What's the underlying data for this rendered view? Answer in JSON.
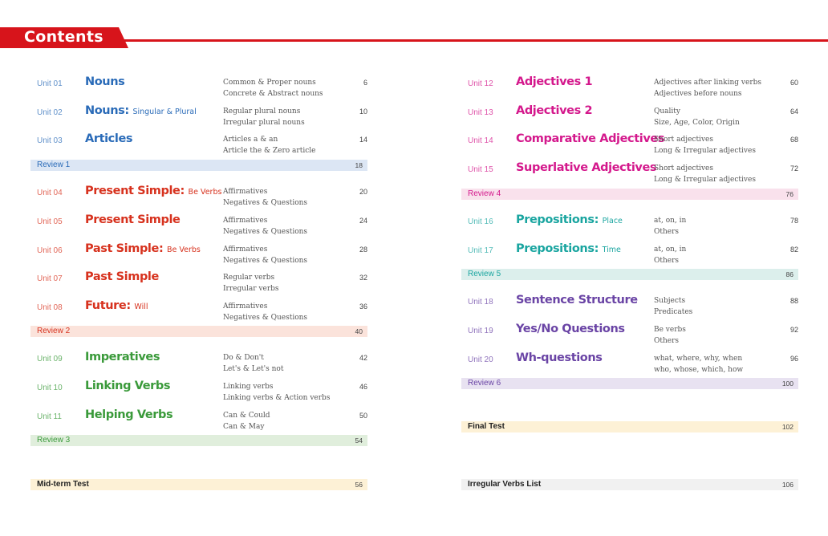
{
  "header": {
    "title": "Contents"
  },
  "colors": {
    "blue": "#2a6bb8",
    "red": "#d7321e",
    "green": "#3a9a3a",
    "magenta": "#d4188c",
    "teal": "#1aa5a0",
    "purple": "#6a44a5",
    "brand_red": "#d7141b"
  },
  "left": {
    "sections": [
      {
        "units": [
          {
            "unit": "Unit 01",
            "title": "Nouns",
            "subtitle": "",
            "desc": [
              "Common & Proper nouns",
              "Concrete & Abstract nouns"
            ],
            "page": "6"
          },
          {
            "unit": "Unit 02",
            "title": "Nouns:",
            "subtitle": "Singular & Plural",
            "desc": [
              "Regular plural nouns",
              "Irregular plural nouns"
            ],
            "page": "10"
          },
          {
            "unit": "Unit 03",
            "title": "Articles",
            "subtitle": "",
            "desc": [
              "Articles a & an",
              "Article the & Zero article"
            ],
            "page": "14"
          }
        ],
        "review": {
          "label": "Review 1",
          "page": "18"
        }
      },
      {
        "units": [
          {
            "unit": "Unit 04",
            "title": "Present Simple:",
            "subtitle": "Be Verbs",
            "desc": [
              "Affirmatives",
              "Negatives & Questions"
            ],
            "page": "20"
          },
          {
            "unit": "Unit 05",
            "title": "Present Simple",
            "subtitle": "",
            "desc": [
              "Affirmatives",
              "Negatives & Questions"
            ],
            "page": "24"
          },
          {
            "unit": "Unit 06",
            "title": "Past Simple:",
            "subtitle": "Be Verbs",
            "desc": [
              "Affirmatives",
              "Negatives & Questions"
            ],
            "page": "28"
          },
          {
            "unit": "Unit 07",
            "title": "Past Simple",
            "subtitle": "",
            "desc": [
              "Regular verbs",
              "Irregular verbs"
            ],
            "page": "32"
          },
          {
            "unit": "Unit 08",
            "title": "Future:",
            "subtitle": "Will",
            "desc": [
              "Affirmatives",
              "Negatives & Questions"
            ],
            "page": "36"
          }
        ],
        "review": {
          "label": "Review 2",
          "page": "40"
        }
      },
      {
        "units": [
          {
            "unit": "Unit 09",
            "title": "Imperatives",
            "subtitle": "",
            "desc": [
              "Do & Don't",
              "Let's & Let's not"
            ],
            "page": "42"
          },
          {
            "unit": "Unit 10",
            "title": "Linking Verbs",
            "subtitle": "",
            "desc": [
              "Linking verbs",
              "Linking verbs & Action verbs"
            ],
            "page": "46"
          },
          {
            "unit": "Unit 11",
            "title": "Helping Verbs",
            "subtitle": "",
            "desc": [
              "Can & Could",
              "Can & May"
            ],
            "page": "50"
          }
        ],
        "review": {
          "label": "Review 3",
          "page": "54"
        }
      }
    ],
    "test": {
      "label": "Mid-term Test",
      "page": "56"
    }
  },
  "right": {
    "sections": [
      {
        "units": [
          {
            "unit": "Unit 12",
            "title": "Adjectives 1",
            "subtitle": "",
            "desc": [
              "Adjectives after linking verbs",
              "Adjectives before nouns"
            ],
            "page": "60"
          },
          {
            "unit": "Unit 13",
            "title": "Adjectives 2",
            "subtitle": "",
            "desc": [
              "Quality",
              "Size, Age, Color, Origin"
            ],
            "page": "64"
          },
          {
            "unit": "Unit 14",
            "title": "Comparative Adjectives",
            "subtitle": "",
            "desc": [
              "Short adjectives",
              "Long & Irregular adjectives"
            ],
            "page": "68"
          },
          {
            "unit": "Unit 15",
            "title": "Superlative Adjectives",
            "subtitle": "",
            "desc": [
              "Short adjectives",
              "Long & Irregular adjectives"
            ],
            "page": "72"
          }
        ],
        "review": {
          "label": "Review 4",
          "page": "76"
        }
      },
      {
        "units": [
          {
            "unit": "Unit 16",
            "title": "Prepositions:",
            "subtitle": "Place",
            "desc": [
              "at, on, in",
              "Others"
            ],
            "page": "78"
          },
          {
            "unit": "Unit 17",
            "title": "Prepositions:",
            "subtitle": "Time",
            "desc": [
              "at, on, in",
              "Others"
            ],
            "page": "82"
          }
        ],
        "review": {
          "label": "Review 5",
          "page": "86"
        }
      },
      {
        "units": [
          {
            "unit": "Unit 18",
            "title": "Sentence Structure",
            "subtitle": "",
            "desc": [
              "Subjects",
              "Predicates"
            ],
            "page": "88"
          },
          {
            "unit": "Unit 19",
            "title": "Yes/No Questions",
            "subtitle": "",
            "desc": [
              "Be verbs",
              "Others"
            ],
            "page": "92"
          },
          {
            "unit": "Unit 20",
            "title": "Wh-questions",
            "subtitle": "",
            "desc": [
              "what, where, why, when",
              "who, whose, which, how"
            ],
            "page": "96"
          }
        ],
        "review": {
          "label": "Review 6",
          "page": "100"
        }
      }
    ],
    "final": {
      "label": "Final Test",
      "page": "102"
    },
    "appendix": {
      "label": "Irregular Verbs List",
      "page": "106"
    }
  }
}
